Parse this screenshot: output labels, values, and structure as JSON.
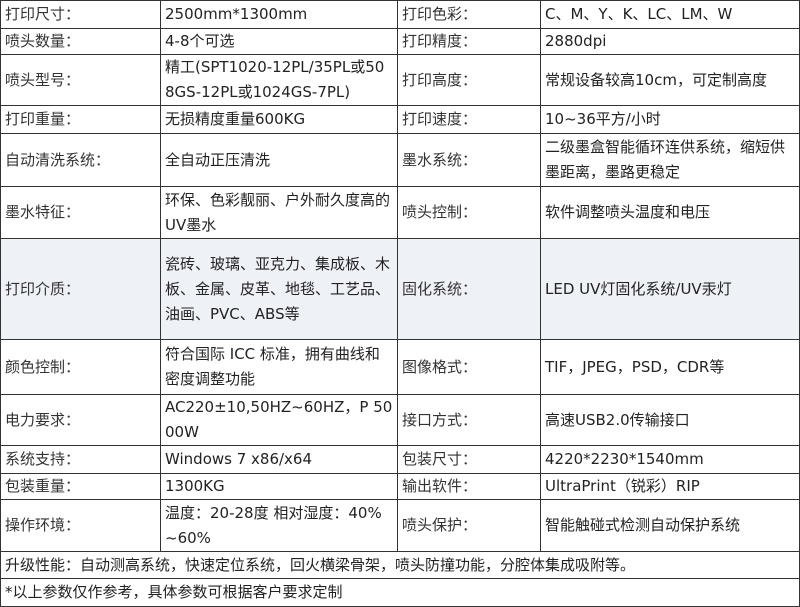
{
  "rows": [
    {
      "k1": "打印尺寸：",
      "v1": "2500mm*1300mm",
      "k2": "打印色彩：",
      "v2": "C、M、Y、K、LC、LM、W"
    },
    {
      "k1": "喷头数量：",
      "v1": "4-8个可选",
      "k2": "打印精度：",
      "v2": "2880dpi"
    },
    {
      "k1": "喷头型号：",
      "v1": "精工(SPT1020-12PL/35PL或508GS-12PL或1024GS-7PL)",
      "k2": "打印高度：",
      "v2": "常规设备较高10cm，可定制高度"
    },
    {
      "k1": "打印重量：",
      "v1": "无损精度重量600KG",
      "k2": "打印速度：",
      "v2": "10~36平方/小时"
    },
    {
      "k1": "自动清洗系统：",
      "v1": "全自动正压清洗",
      "k2": "墨水系统：",
      "v2": "二级墨盒智能循环连供系统，缩短供墨距离，墨路更稳定"
    },
    {
      "k1": "墨水特征：",
      "v1": "环保、色彩靓丽、户外耐久度高的UV墨水",
      "k2": "喷头控制：",
      "v2": "软件调整喷头温度和电压"
    },
    {
      "k1": "打印介质：",
      "v1": "瓷砖、玻璃、亚克力、集成板、木板、金属、皮革、地毯、工艺品、油画、PVC、ABS等",
      "k2": "固化系统：",
      "v2": "LED UV灯固化系统/UV汞灯"
    },
    {
      "k1": "颜色控制：",
      "v1": "符合国际 ICC 标准，拥有曲线和密度调整功能",
      "k2": "图像格式：",
      "v2": "TIF，JPEG，PSD，CDR等"
    },
    {
      "k1": "电力要求：",
      "v1": "AC220±10,50HZ~60HZ，P 5000W",
      "k2": "接口方式：",
      "v2": "高速USB2.0传输接口"
    },
    {
      "k1": "系统支持：",
      "v1": "Windows 7 x86/x64",
      "k2": "包装尺寸：",
      "v2": "4220*2230*1540mm"
    },
    {
      "k1": "包装重量：",
      "v1": "1300KG",
      "k2": "输出软件：",
      "v2": "UltraPrint（锐彩）RIP"
    },
    {
      "k1": "操作环境：",
      "v1": "温度：20-28度 相对湿度：40%~60%",
      "k2": "喷头保护：",
      "v2": "智能触碰式检测自动保护系统"
    }
  ],
  "upgrade": "升级性能：自动测高系统，快速定位系统，回火横梁骨架，喷头防撞功能，分腔体集成吸附等。",
  "note": "*以上参数仅作参考，具体参数可根据客户要求定制"
}
